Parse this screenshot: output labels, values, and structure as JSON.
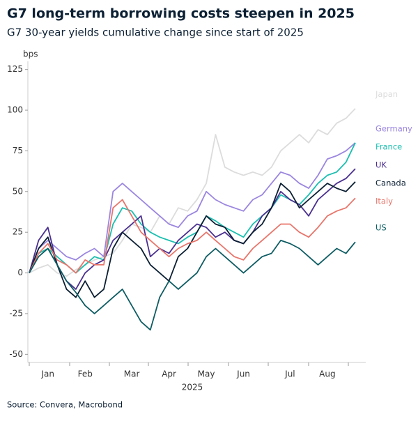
{
  "chart_data": {
    "type": "line",
    "title": "G7 long-term borrowing costs steepen in 2025",
    "subtitle": "G7 30-year yields cumulative change since start of 2025",
    "y_unit": "bps",
    "x_label": "2025",
    "source": "Source: Convera, Macrobond",
    "categories": [
      null,
      null,
      "Jan",
      null,
      null,
      null,
      "Feb",
      null,
      null,
      null,
      null,
      "Mar",
      null,
      null,
      null,
      "Apr",
      null,
      null,
      null,
      "May",
      null,
      null,
      null,
      "Jun",
      null,
      null,
      null,
      null,
      "Jul",
      null,
      null,
      null,
      "Aug",
      null,
      null,
      null
    ],
    "ylim": [
      -55,
      130
    ],
    "yticks": [
      -50,
      -25,
      0,
      25,
      50,
      75,
      100,
      125
    ],
    "series": [
      {
        "name": "Japan",
        "color": "#dcdcdc",
        "values": [
          0,
          3,
          5,
          0,
          -2,
          2,
          5,
          8,
          10,
          12,
          20,
          30,
          28,
          25,
          35,
          30,
          40,
          38,
          45,
          55,
          85,
          65,
          62,
          60,
          62,
          60,
          65,
          75,
          80,
          85,
          80,
          88,
          85,
          92,
          95,
          101
        ]
      },
      {
        "name": "Germany",
        "color": "#9b86e0",
        "values": [
          0,
          15,
          20,
          15,
          10,
          8,
          12,
          15,
          10,
          50,
          55,
          50,
          45,
          40,
          35,
          30,
          28,
          35,
          38,
          50,
          45,
          42,
          40,
          38,
          45,
          48,
          55,
          62,
          60,
          55,
          52,
          60,
          70,
          72,
          75,
          80
        ]
      },
      {
        "name": "France",
        "color": "#1bbfb0",
        "values": [
          0,
          12,
          15,
          10,
          5,
          0,
          5,
          10,
          8,
          30,
          40,
          38,
          30,
          25,
          22,
          20,
          18,
          22,
          25,
          35,
          32,
          28,
          25,
          22,
          30,
          35,
          40,
          48,
          45,
          42,
          48,
          55,
          60,
          62,
          68,
          80
        ]
      },
      {
        "name": "UK",
        "color": "#4a2f8f",
        "values": [
          0,
          20,
          28,
          5,
          -5,
          -10,
          0,
          5,
          8,
          20,
          25,
          30,
          35,
          10,
          15,
          12,
          20,
          25,
          30,
          28,
          22,
          25,
          20,
          18,
          25,
          35,
          40,
          50,
          45,
          42,
          35,
          45,
          50,
          55,
          58,
          64
        ]
      },
      {
        "name": "Canada",
        "color": "#0b1f33",
        "values": [
          0,
          15,
          22,
          5,
          -10,
          -15,
          -5,
          -15,
          -10,
          15,
          25,
          20,
          15,
          5,
          0,
          -5,
          10,
          15,
          25,
          35,
          30,
          28,
          20,
          18,
          25,
          30,
          40,
          55,
          50,
          40,
          45,
          50,
          55,
          52,
          50,
          56
        ]
      },
      {
        "name": "Italy",
        "color": "#e8756b",
        "values": [
          0,
          12,
          18,
          8,
          5,
          0,
          8,
          5,
          5,
          40,
          45,
          35,
          25,
          20,
          15,
          10,
          15,
          18,
          20,
          25,
          20,
          15,
          10,
          8,
          15,
          20,
          25,
          30,
          30,
          25,
          22,
          28,
          35,
          38,
          40,
          46
        ]
      },
      {
        "name": "US",
        "color": "#0d5c63",
        "values": [
          0,
          10,
          15,
          5,
          -5,
          -12,
          -20,
          -25,
          -20,
          -15,
          -10,
          -20,
          -30,
          -35,
          -15,
          -5,
          -10,
          -5,
          0,
          10,
          15,
          10,
          5,
          0,
          5,
          10,
          12,
          20,
          18,
          15,
          10,
          5,
          10,
          15,
          12,
          19
        ]
      }
    ]
  }
}
